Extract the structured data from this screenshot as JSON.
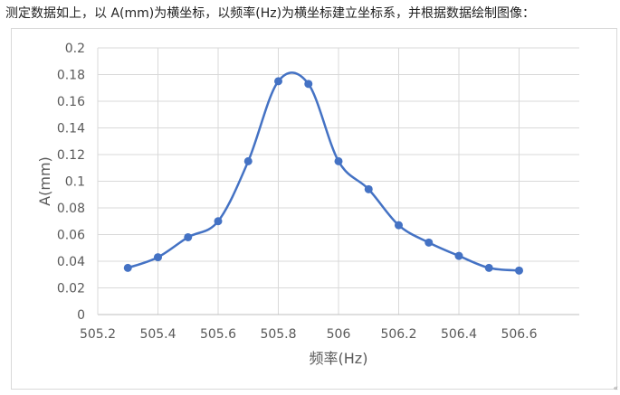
{
  "caption": "测定数据如上，以 A(mm)为横坐标，以频率(Hz)为横坐标建立坐标系，并根据数据绘制图像：",
  "corner_mark": "«",
  "chart_data": {
    "type": "scatter",
    "smooth_line": true,
    "title": "",
    "xlabel": "频率(Hz)",
    "ylabel": "A(mm)",
    "xlim": [
      505.2,
      506.8
    ],
    "ylim": [
      0,
      0.2
    ],
    "grid": true,
    "x_ticks": [
      "505.2",
      "505.4",
      "505.6",
      "505.8",
      "506",
      "506.2",
      "506.4",
      "506.6"
    ],
    "y_ticks": [
      "0",
      "0.02",
      "0.04",
      "0.06",
      "0.08",
      "0.1",
      "0.12",
      "0.14",
      "0.16",
      "0.18",
      "0.2"
    ],
    "series": [
      {
        "color": "#4472c4",
        "x": [
          505.3,
          505.4,
          505.5,
          505.6,
          505.7,
          505.8,
          505.9,
          506.0,
          506.1,
          506.2,
          506.3,
          506.4,
          506.5,
          506.6
        ],
        "y": [
          0.035,
          0.043,
          0.058,
          0.07,
          0.115,
          0.175,
          0.173,
          0.115,
          0.094,
          0.067,
          0.054,
          0.044,
          0.035,
          0.033
        ]
      }
    ]
  }
}
